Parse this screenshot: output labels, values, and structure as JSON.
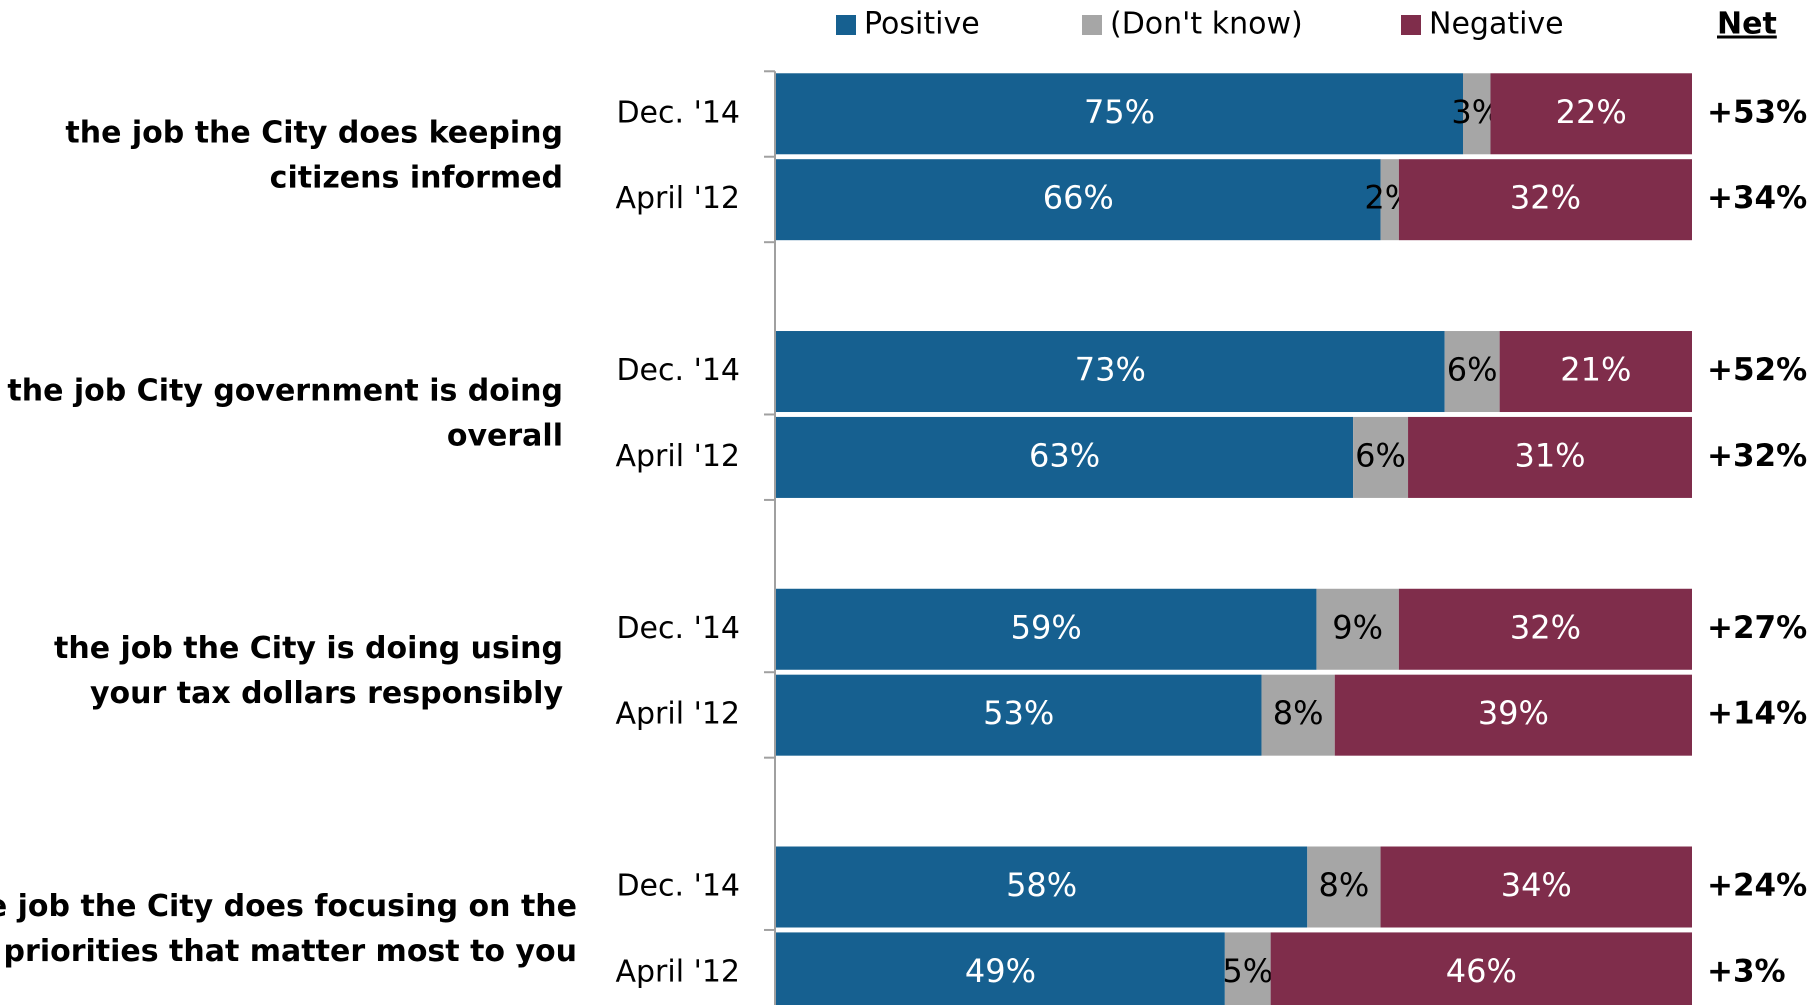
{
  "chart_data": {
    "type": "bar",
    "orientation": "horizontal",
    "stacked": true,
    "groups": [
      [
        "the job the City does keeping",
        "citizens informed"
      ],
      [
        "the job City government is doing",
        "overall"
      ],
      [
        "the job the City is doing using",
        "your tax dollars responsibly"
      ],
      [
        "the job the City does focusing on the",
        "priorities that matter most to you"
      ]
    ],
    "categories": [
      "Dec. '14",
      "April '12",
      "Dec. '14",
      "April '12",
      "Dec. '14",
      "April '12",
      "Dec. '14",
      "April '12"
    ],
    "series": [
      {
        "name": "Positive",
        "color": "#166090",
        "label_color": "#ffffff",
        "values": [
          75,
          66,
          73,
          63,
          59,
          53,
          58,
          49
        ],
        "value_labels": [
          "75%",
          "66%",
          "73%",
          "63%",
          "59%",
          "53%",
          "58%",
          "49%"
        ]
      },
      {
        "name": "(Don't know)",
        "color": "#a6a6a6",
        "label_color": "#000000",
        "values": [
          3,
          2,
          6,
          6,
          9,
          8,
          8,
          5
        ],
        "value_labels": [
          "3%",
          "2%",
          "6%",
          "6%",
          "9%",
          "8%",
          "8%",
          "5%"
        ]
      },
      {
        "name": "Negative",
        "color": "#7f2d4b",
        "label_color": "#ffffff",
        "values": [
          22,
          32,
          21,
          31,
          32,
          39,
          34,
          46
        ],
        "value_labels": [
          "22%",
          "32%",
          "21%",
          "31%",
          "32%",
          "39%",
          "34%",
          "46%"
        ]
      }
    ],
    "net": {
      "title": "Net",
      "values": [
        53,
        34,
        52,
        32,
        27,
        14,
        24,
        3
      ],
      "value_labels": [
        "+53%",
        "+34%",
        "+52%",
        "+32%",
        "+27%",
        "+14%",
        "+24%",
        "+3%"
      ]
    },
    "xlim": [
      0,
      100
    ]
  }
}
